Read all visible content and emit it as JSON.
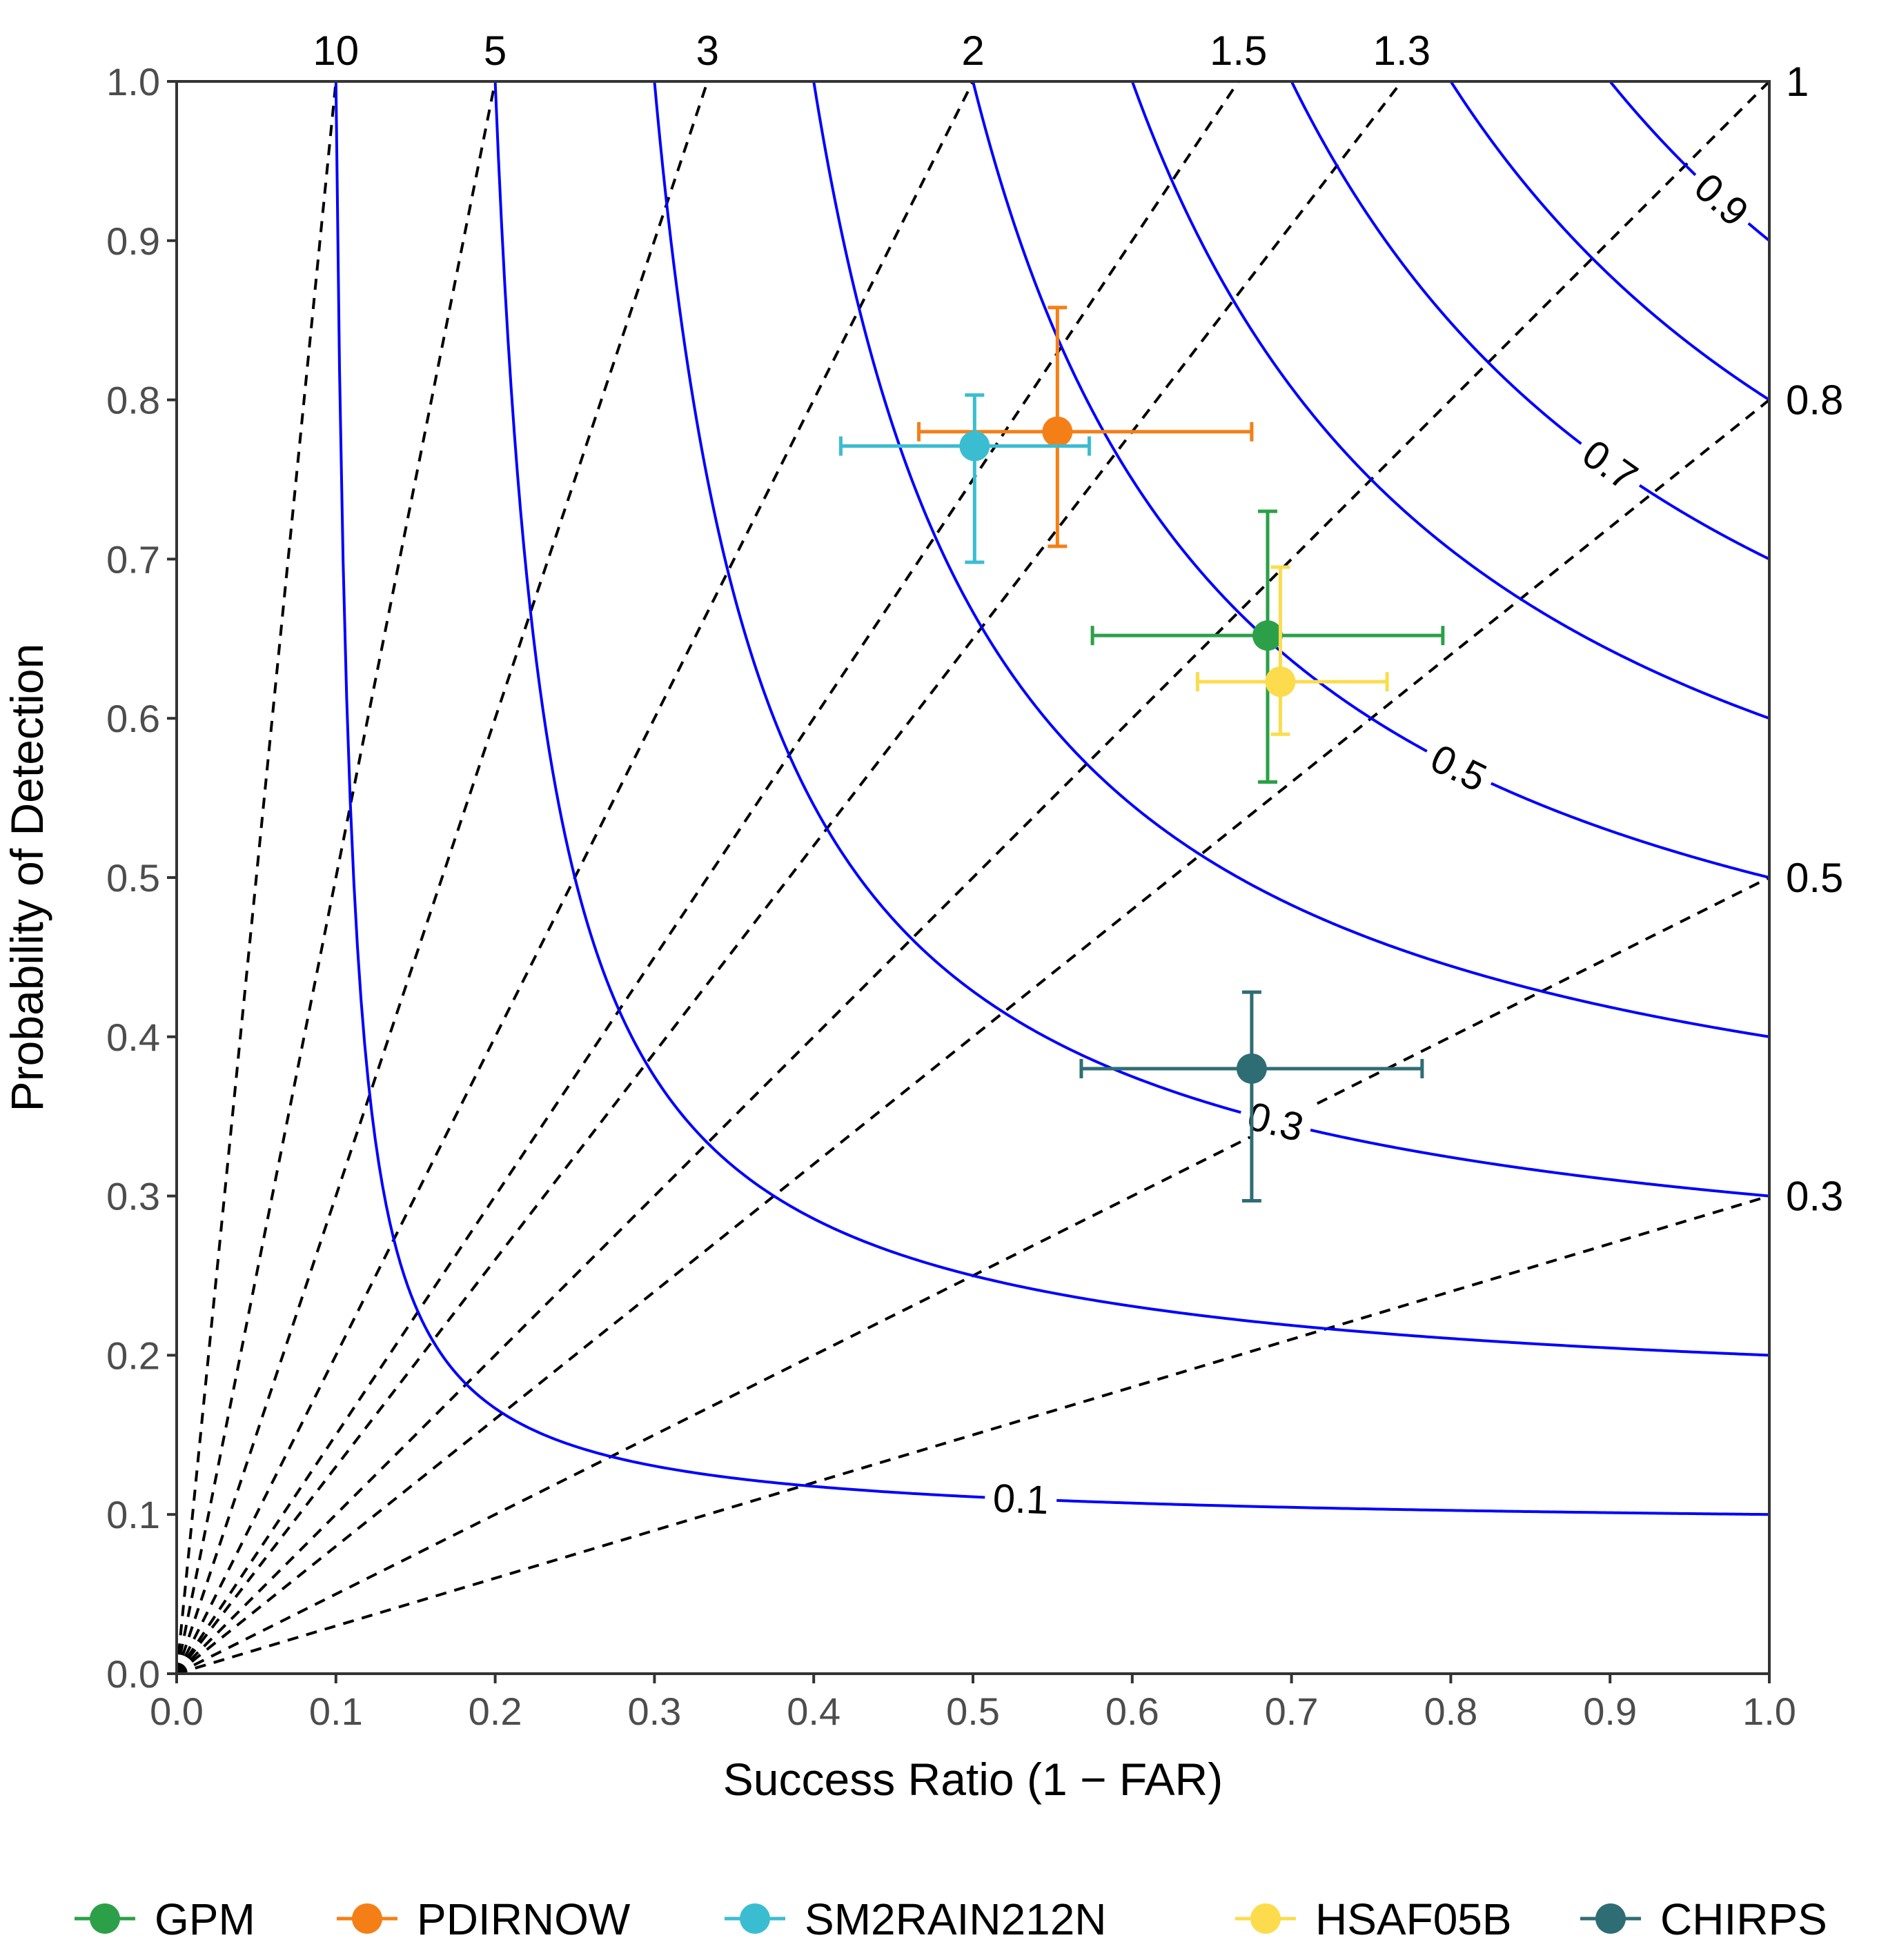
{
  "chart_data": {
    "type": "scatter",
    "title": "",
    "xlabel": "Success Ratio (1 − FAR)",
    "ylabel": "Probability of Detection",
    "xlim": [
      0,
      1
    ],
    "ylim": [
      0,
      1
    ],
    "x_ticks": [
      "0.0",
      "0.1",
      "0.2",
      "0.3",
      "0.4",
      "0.5",
      "0.6",
      "0.7",
      "0.8",
      "0.9",
      "1.0"
    ],
    "y_ticks": [
      "0.0",
      "0.1",
      "0.2",
      "0.3",
      "0.4",
      "0.5",
      "0.6",
      "0.7",
      "0.8",
      "0.9",
      "1.0"
    ],
    "grid": false,
    "legend_position": "bottom",
    "bias_lines": [
      {
        "value": 10,
        "label": "10"
      },
      {
        "value": 5,
        "label": "5"
      },
      {
        "value": 3,
        "label": "3"
      },
      {
        "value": 2,
        "label": "2"
      },
      {
        "value": 1.5,
        "label": "1.5"
      },
      {
        "value": 1.3,
        "label": "1.3"
      },
      {
        "value": 1,
        "label": "1"
      },
      {
        "value": 0.8,
        "label": "0.8"
      },
      {
        "value": 0.5,
        "label": "0.5"
      },
      {
        "value": 0.3,
        "label": "0.3"
      }
    ],
    "csi_contours": [
      0.1,
      0.2,
      0.3,
      0.4,
      0.5,
      0.6,
      0.7,
      0.8,
      0.9
    ],
    "csi_labels": [
      {
        "csi": 0.1,
        "label": "0.1"
      },
      {
        "csi": 0.3,
        "label": "0.3"
      },
      {
        "csi": 0.5,
        "label": "0.5"
      },
      {
        "csi": 0.7,
        "label": "0.7"
      },
      {
        "csi": 0.9,
        "label": "0.9"
      }
    ],
    "series": [
      {
        "name": "GPM",
        "color": "#2ca048",
        "x": 0.685,
        "y": 0.652,
        "x_err": [
          0.575,
          0.795
        ],
        "y_err": [
          0.56,
          0.73
        ]
      },
      {
        "name": "PDIRNOW",
        "color": "#f57f17",
        "x": 0.553,
        "y": 0.78,
        "x_err": [
          0.466,
          0.675
        ],
        "y_err": [
          0.708,
          0.858
        ]
      },
      {
        "name": "SM2RAIN212N",
        "color": "#3bbdd1",
        "x": 0.501,
        "y": 0.771,
        "x_err": [
          0.417,
          0.573
        ],
        "y_err": [
          0.698,
          0.803
        ]
      },
      {
        "name": "HSAF05B",
        "color": "#fcdc4d",
        "x": 0.693,
        "y": 0.623,
        "x_err": [
          0.641,
          0.76
        ],
        "y_err": [
          0.59,
          0.695
        ]
      },
      {
        "name": "CHIRPS",
        "color": "#2f6d74",
        "x": 0.675,
        "y": 0.38,
        "x_err": [
          0.568,
          0.782
        ],
        "y_err": [
          0.297,
          0.428
        ]
      }
    ]
  }
}
